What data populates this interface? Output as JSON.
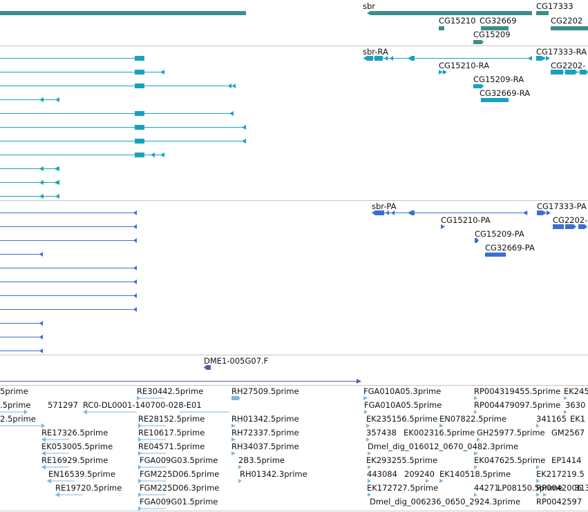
{
  "colors": {
    "gene": "#3a8f8a",
    "transcript_rna": "#17a2bf",
    "protein": "#3a6fcf",
    "clone": "#6b4fa8",
    "est": "#7fb6dd",
    "separator": "#c4c4c4"
  },
  "tracks": {
    "genes": {
      "labels": [
        "sbr",
        "CG17333",
        "CG15210",
        "CG32669",
        "CG2202",
        "CG15209"
      ]
    },
    "transcripts": {
      "labels": [
        "sbr-RA",
        "CG17333-RA",
        "CG15210-RA",
        "CG2202-",
        "CG15209-RA",
        "CG32669-RA"
      ]
    },
    "proteins": {
      "labels": [
        "sbr-PA",
        "CG17333-PA",
        "CG15210-PA",
        "CG2202-",
        "CG15209-PA",
        "CG32669-PA"
      ]
    },
    "clone": {
      "label": "DME1-005G07.F"
    },
    "ests": {
      "labels": [
        "5prime",
        "RE30442.5prime",
        "RH27509.5prime",
        "FGA010A05.3prime",
        "RP004319455.5prime",
        "EK245",
        ".5prime",
        "571297",
        "RC0-DL0001-140700-028-E01",
        "FGA010A05.5prime",
        "RP004479097.5prime",
        "3630",
        "2.5prime",
        "RE28152.5prime",
        "RH01342.5prime",
        "EK235156.5prime",
        "EN07822.5prime",
        "341165",
        "EK1",
        "RE17326.5prime",
        "RE10617.5prime",
        "RH72337.5prime",
        "357438",
        "EK002316.5prime",
        "GH25977.5prime",
        "GM2567",
        "EK053005.5prime",
        "RE04571.5prime",
        "RH34037.5prime",
        "Dmel_dig_016012_0670_0482.3prime",
        "RE16929.5prime",
        "FGA009G03.5prime",
        "2B3.5prime",
        "EK293255.5prime",
        "EK047625.5prime",
        "EP1414",
        "EN16539.5prime",
        "FGM225D06.5prime",
        "RH01342.3prime",
        "443084",
        "209240",
        "EK140518.5prime",
        "EK217219.5",
        "RE19720.5prime",
        "FGM225D06.3prime",
        "EK172727.5prime",
        "44271",
        "LP08150.5prime",
        "RP0042006",
        "FGA009G01.5prime",
        "Dmel_dig_006236_0650_2924.3prime",
        "RP0042597",
        "313"
      ]
    }
  }
}
